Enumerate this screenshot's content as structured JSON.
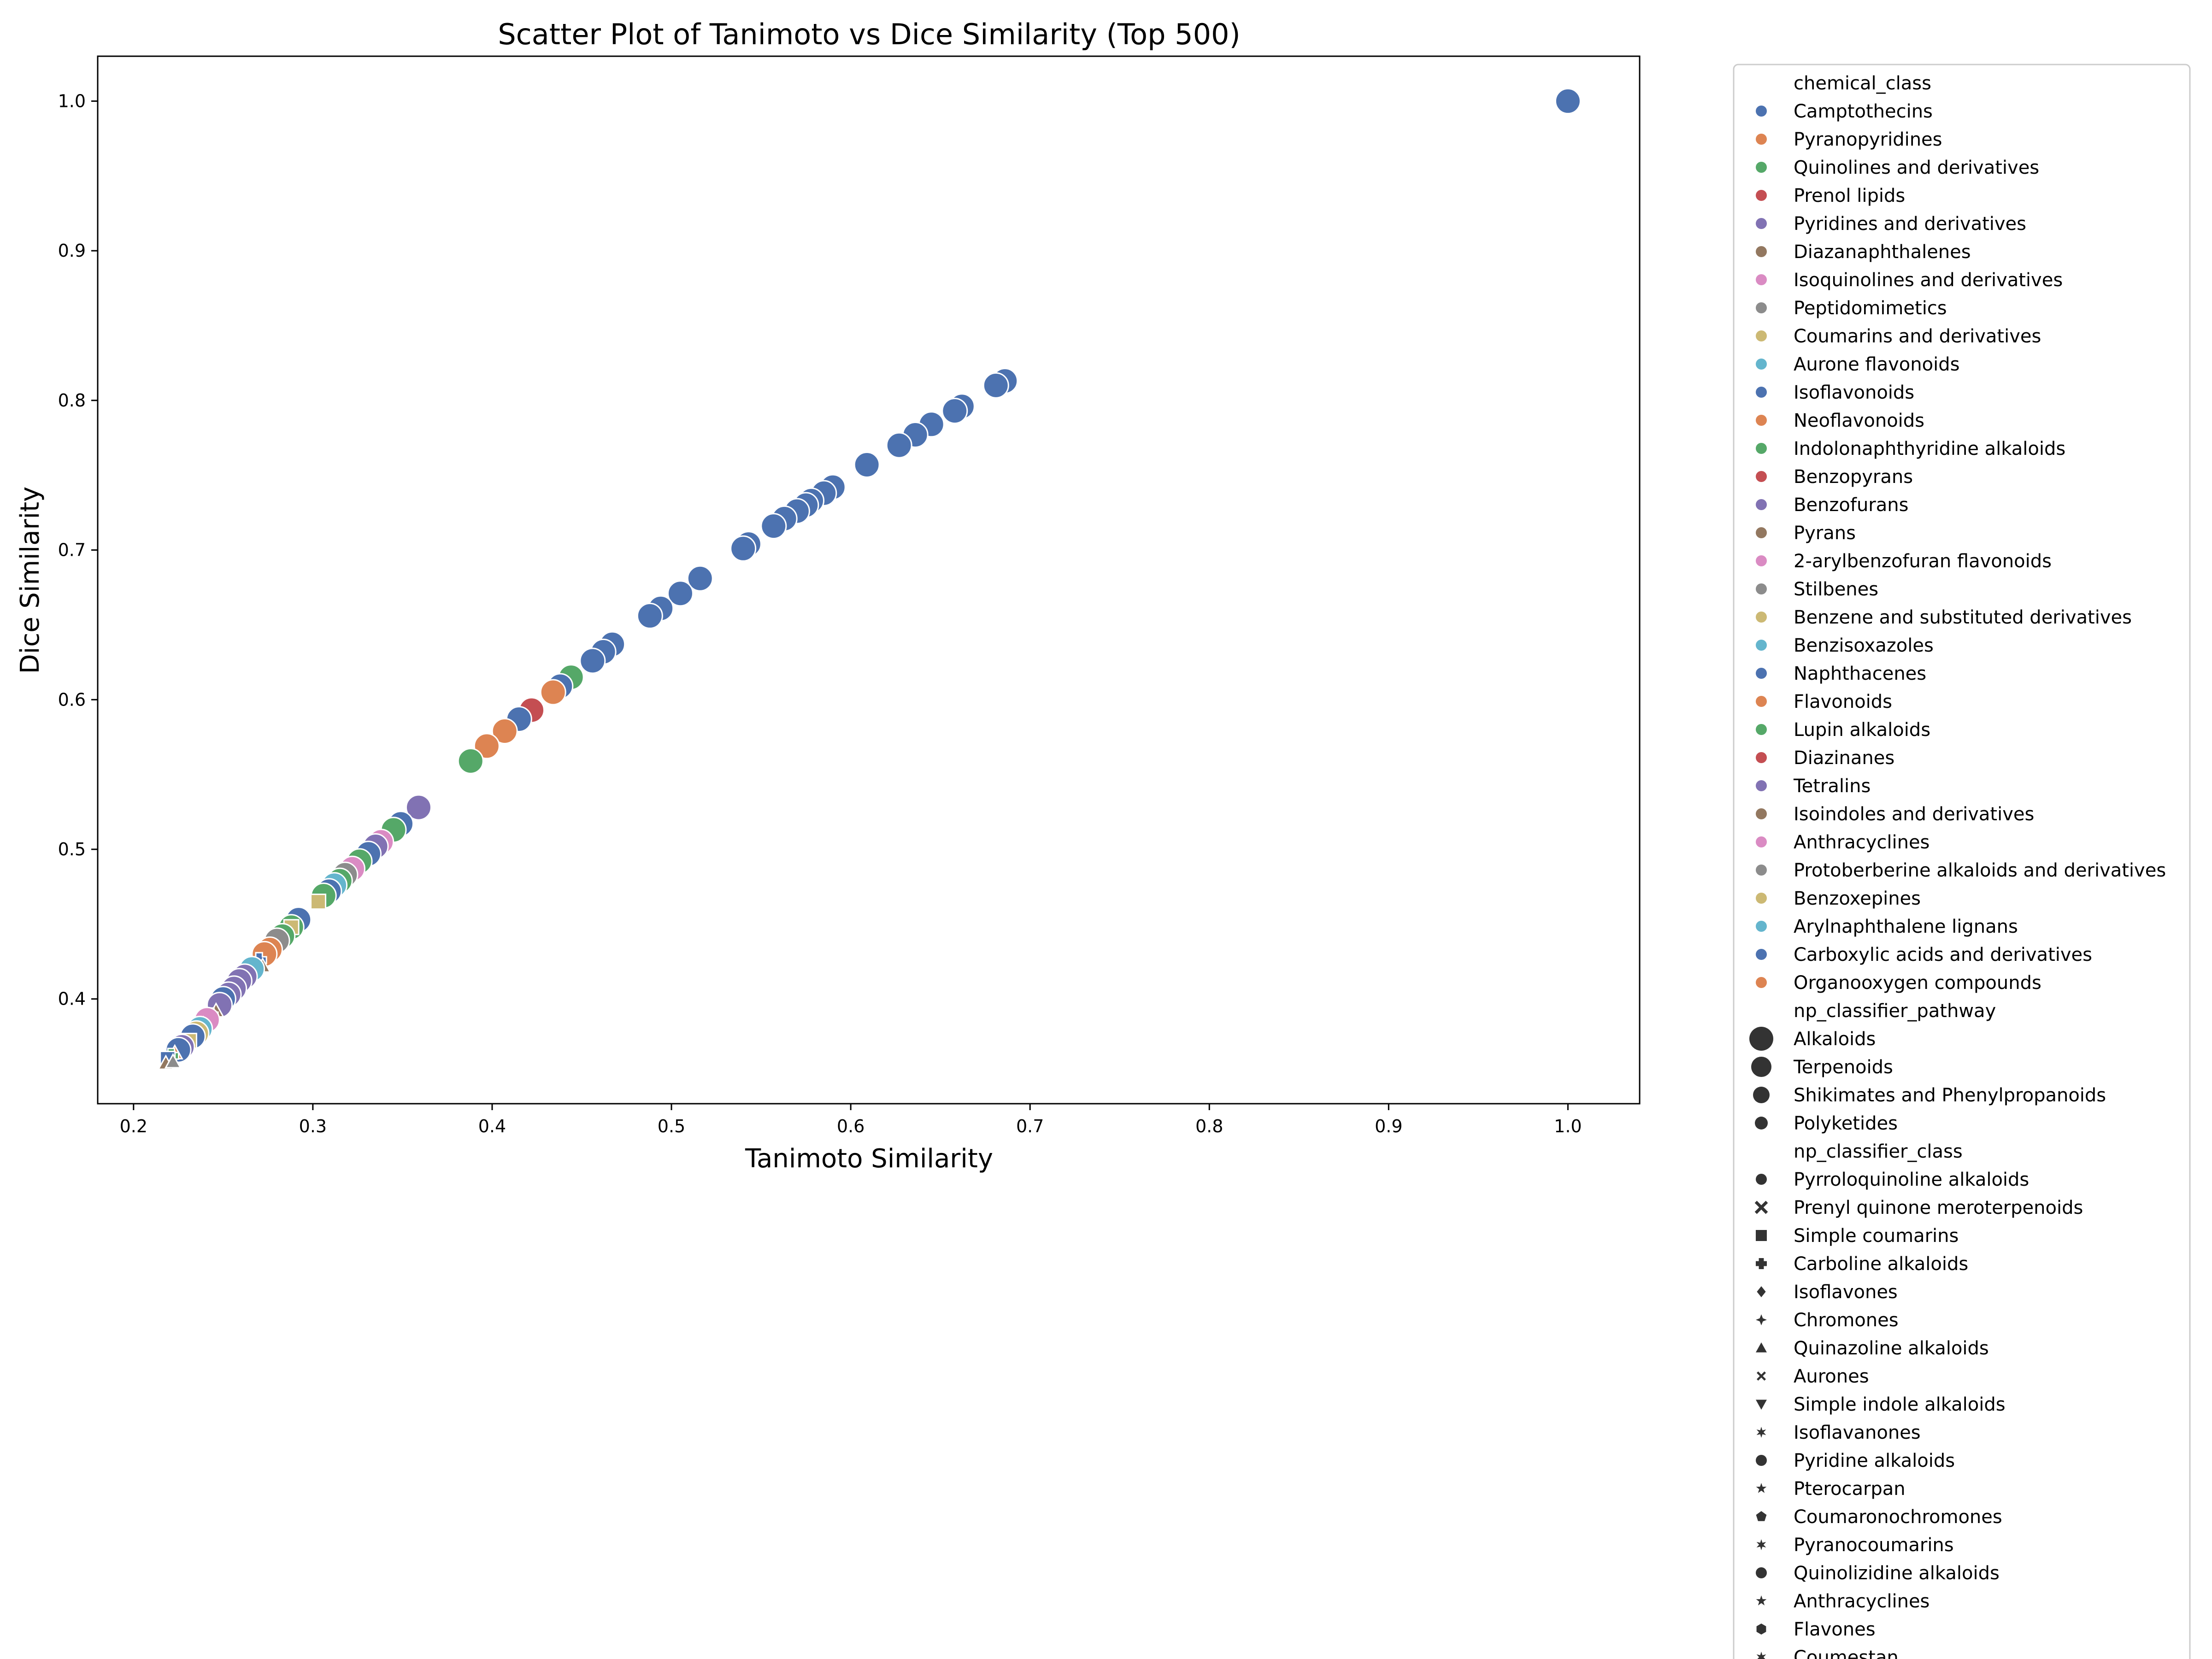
{
  "chart_data": {
    "type": "scatter",
    "title": "Scatter Plot of Tanimoto vs Dice Similarity (Top 500)",
    "xlabel": "Tanimoto Similarity",
    "ylabel": "Dice Similarity",
    "xlim": [
      0.18,
      1.04
    ],
    "ylim": [
      0.33,
      1.03
    ],
    "xticks": [
      "0.2",
      "0.3",
      "0.4",
      "0.5",
      "0.6",
      "0.7",
      "0.8",
      "0.9",
      "1.0"
    ],
    "yticks": [
      "0.4",
      "0.5",
      "0.6",
      "0.7",
      "0.8",
      "0.9",
      "1.0"
    ],
    "grid": false,
    "legend_position": "outside-right",
    "legend": {
      "hue_title": "chemical_class",
      "hue": [
        {
          "name": "Camptothecins",
          "color": "#4c72b0"
        },
        {
          "name": "Pyranopyridines",
          "color": "#dd8452"
        },
        {
          "name": "Quinolines and derivatives",
          "color": "#55a868"
        },
        {
          "name": "Prenol lipids",
          "color": "#c44e52"
        },
        {
          "name": "Pyridines and derivatives",
          "color": "#8172b3"
        },
        {
          "name": "Diazanaphthalenes",
          "color": "#937860"
        },
        {
          "name": "Isoquinolines and derivatives",
          "color": "#da8bc3"
        },
        {
          "name": "Peptidomimetics",
          "color": "#8c8c8c"
        },
        {
          "name": "Coumarins and derivatives",
          "color": "#ccb974"
        },
        {
          "name": "Aurone flavonoids",
          "color": "#64b5cd"
        },
        {
          "name": "Isoflavonoids",
          "color": "#4c72b0"
        },
        {
          "name": "Neoflavonoids",
          "color": "#dd8452"
        },
        {
          "name": "Indolonaphthyridine alkaloids",
          "color": "#55a868"
        },
        {
          "name": "Benzopyrans",
          "color": "#c44e52"
        },
        {
          "name": "Benzofurans",
          "color": "#8172b3"
        },
        {
          "name": "Pyrans",
          "color": "#937860"
        },
        {
          "name": "2-arylbenzofuran flavonoids",
          "color": "#da8bc3"
        },
        {
          "name": "Stilbenes",
          "color": "#8c8c8c"
        },
        {
          "name": "Benzene and substituted derivatives",
          "color": "#ccb974"
        },
        {
          "name": "Benzisoxazoles",
          "color": "#64b5cd"
        },
        {
          "name": "Naphthacenes",
          "color": "#4c72b0"
        },
        {
          "name": "Flavonoids",
          "color": "#dd8452"
        },
        {
          "name": "Lupin alkaloids",
          "color": "#55a868"
        },
        {
          "name": "Diazinanes",
          "color": "#c44e52"
        },
        {
          "name": "Tetralins",
          "color": "#8172b3"
        },
        {
          "name": "Isoindoles and derivatives",
          "color": "#937860"
        },
        {
          "name": "Anthracyclines",
          "color": "#da8bc3"
        },
        {
          "name": "Protoberberine alkaloids and derivatives",
          "color": "#8c8c8c"
        },
        {
          "name": "Benzoxepines",
          "color": "#ccb974"
        },
        {
          "name": "Arylnaphthalene lignans",
          "color": "#64b5cd"
        },
        {
          "name": "Carboxylic acids and derivatives",
          "color": "#4c72b0"
        },
        {
          "name": "Organooxygen compounds",
          "color": "#dd8452"
        }
      ],
      "size_title": "np_classifier_pathway",
      "size": [
        {
          "name": "Alkaloids",
          "r": 26
        },
        {
          "name": "Terpenoids",
          "r": 22
        },
        {
          "name": "Shikimates and Phenylpropanoids",
          "r": 18
        },
        {
          "name": "Polyketides",
          "r": 14
        }
      ],
      "style_title": "np_classifier_class",
      "style": [
        {
          "name": "Pyrroloquinoline alkaloids",
          "marker": "circle"
        },
        {
          "name": "Prenyl quinone meroterpenoids",
          "marker": "x"
        },
        {
          "name": "Simple coumarins",
          "marker": "square"
        },
        {
          "name": "Carboline alkaloids",
          "marker": "plus"
        },
        {
          "name": "Isoflavones",
          "marker": "diamond"
        },
        {
          "name": "Chromones",
          "marker": "star4"
        },
        {
          "name": "Quinazoline alkaloids",
          "marker": "triangle-up"
        },
        {
          "name": "Aurones",
          "marker": "x-small"
        },
        {
          "name": "Simple indole alkaloids",
          "marker": "triangle-down"
        },
        {
          "name": "Isoflavanones",
          "marker": "star6"
        },
        {
          "name": "Pyridine alkaloids",
          "marker": "circle"
        },
        {
          "name": "Pterocarpan",
          "marker": "star5"
        },
        {
          "name": "Coumaronochromones",
          "marker": "pentagon"
        },
        {
          "name": "Pyranocoumarins",
          "marker": "star6"
        },
        {
          "name": "Quinolizidine alkaloids",
          "marker": "circle"
        },
        {
          "name": "Anthracyclines",
          "marker": "star5"
        },
        {
          "name": "Flavones",
          "marker": "hexagon"
        },
        {
          "name": "Coumestan",
          "marker": "star6"
        }
      ]
    },
    "points": [
      {
        "x": 1.0,
        "y": 1.0,
        "c": "#4c72b0"
      },
      {
        "x": 0.686,
        "y": 0.813,
        "c": "#4c72b0"
      },
      {
        "x": 0.681,
        "y": 0.81,
        "c": "#4c72b0"
      },
      {
        "x": 0.662,
        "y": 0.796,
        "c": "#4c72b0"
      },
      {
        "x": 0.658,
        "y": 0.793,
        "c": "#4c72b0"
      },
      {
        "x": 0.645,
        "y": 0.784,
        "c": "#4c72b0"
      },
      {
        "x": 0.636,
        "y": 0.777,
        "c": "#4c72b0"
      },
      {
        "x": 0.627,
        "y": 0.77,
        "c": "#4c72b0"
      },
      {
        "x": 0.609,
        "y": 0.757,
        "c": "#4c72b0"
      },
      {
        "x": 0.59,
        "y": 0.742,
        "c": "#4c72b0"
      },
      {
        "x": 0.585,
        "y": 0.738,
        "c": "#4c72b0"
      },
      {
        "x": 0.578,
        "y": 0.733,
        "c": "#4c72b0"
      },
      {
        "x": 0.575,
        "y": 0.73,
        "c": "#4c72b0"
      },
      {
        "x": 0.57,
        "y": 0.726,
        "c": "#4c72b0"
      },
      {
        "x": 0.563,
        "y": 0.721,
        "c": "#4c72b0"
      },
      {
        "x": 0.557,
        "y": 0.716,
        "c": "#4c72b0"
      },
      {
        "x": 0.543,
        "y": 0.704,
        "c": "#4c72b0"
      },
      {
        "x": 0.54,
        "y": 0.701,
        "c": "#4c72b0"
      },
      {
        "x": 0.516,
        "y": 0.681,
        "c": "#4c72b0"
      },
      {
        "x": 0.505,
        "y": 0.671,
        "c": "#4c72b0"
      },
      {
        "x": 0.494,
        "y": 0.661,
        "c": "#4c72b0"
      },
      {
        "x": 0.488,
        "y": 0.656,
        "c": "#4c72b0"
      },
      {
        "x": 0.467,
        "y": 0.637,
        "c": "#4c72b0"
      },
      {
        "x": 0.462,
        "y": 0.632,
        "c": "#4c72b0"
      },
      {
        "x": 0.456,
        "y": 0.626,
        "c": "#4c72b0"
      },
      {
        "x": 0.444,
        "y": 0.615,
        "c": "#55a868"
      },
      {
        "x": 0.438,
        "y": 0.609,
        "c": "#4c72b0"
      },
      {
        "x": 0.434,
        "y": 0.605,
        "c": "#dd8452"
      },
      {
        "x": 0.422,
        "y": 0.593,
        "c": "#c44e52"
      },
      {
        "x": 0.415,
        "y": 0.587,
        "c": "#4c72b0"
      },
      {
        "x": 0.407,
        "y": 0.579,
        "c": "#dd8452"
      },
      {
        "x": 0.397,
        "y": 0.569,
        "c": "#dd8452"
      },
      {
        "x": 0.388,
        "y": 0.559,
        "c": "#55a868"
      },
      {
        "x": 0.359,
        "y": 0.528,
        "c": "#8172b3"
      },
      {
        "x": 0.349,
        "y": 0.517,
        "c": "#4c72b0"
      },
      {
        "x": 0.345,
        "y": 0.513,
        "c": "#55a868"
      },
      {
        "x": 0.338,
        "y": 0.505,
        "c": "#da8bc3"
      },
      {
        "x": 0.335,
        "y": 0.502,
        "c": "#8172b3"
      },
      {
        "x": 0.331,
        "y": 0.497,
        "c": "#4c72b0"
      },
      {
        "x": 0.326,
        "y": 0.492,
        "c": "#55a868"
      },
      {
        "x": 0.322,
        "y": 0.487,
        "c": "#da8bc3"
      },
      {
        "x": 0.318,
        "y": 0.483,
        "c": "#8c8c8c"
      },
      {
        "x": 0.315,
        "y": 0.479,
        "c": "#55a868"
      },
      {
        "x": 0.312,
        "y": 0.476,
        "c": "#64b5cd"
      },
      {
        "x": 0.309,
        "y": 0.472,
        "c": "#4c72b0"
      },
      {
        "x": 0.306,
        "y": 0.469,
        "c": "#55a868"
      },
      {
        "x": 0.303,
        "y": 0.465,
        "c": "#ccb974",
        "m": "square"
      },
      {
        "x": 0.292,
        "y": 0.453,
        "c": "#4c72b0"
      },
      {
        "x": 0.288,
        "y": 0.448,
        "c": "#55a868"
      },
      {
        "x": 0.288,
        "y": 0.448,
        "c": "#ccb974",
        "m": "square"
      },
      {
        "x": 0.283,
        "y": 0.442,
        "c": "#55a868"
      },
      {
        "x": 0.28,
        "y": 0.439,
        "c": "#8c8c8c"
      },
      {
        "x": 0.276,
        "y": 0.433,
        "c": "#dd8452"
      },
      {
        "x": 0.273,
        "y": 0.43,
        "c": "#dd8452"
      },
      {
        "x": 0.27,
        "y": 0.426,
        "c": "#4c72b0",
        "m": "plus"
      },
      {
        "x": 0.272,
        "y": 0.422,
        "c": "#937860",
        "m": "triangle-up"
      },
      {
        "x": 0.266,
        "y": 0.42,
        "c": "#64b5cd"
      },
      {
        "x": 0.262,
        "y": 0.415,
        "c": "#8172b3"
      },
      {
        "x": 0.259,
        "y": 0.412,
        "c": "#8172b3"
      },
      {
        "x": 0.256,
        "y": 0.407,
        "c": "#8172b3"
      },
      {
        "x": 0.253,
        "y": 0.403,
        "c": "#8172b3"
      },
      {
        "x": 0.25,
        "y": 0.4,
        "c": "#4c72b0"
      },
      {
        "x": 0.248,
        "y": 0.396,
        "c": "#8172b3"
      },
      {
        "x": 0.246,
        "y": 0.392,
        "c": "#937860",
        "m": "triangle-up"
      },
      {
        "x": 0.243,
        "y": 0.389,
        "c": "#4c72b0",
        "m": "plus"
      },
      {
        "x": 0.241,
        "y": 0.386,
        "c": "#da8bc3"
      },
      {
        "x": 0.239,
        "y": 0.383,
        "c": "#8c8c8c",
        "m": "triangle-up"
      },
      {
        "x": 0.237,
        "y": 0.38,
        "c": "#64b5cd"
      },
      {
        "x": 0.235,
        "y": 0.377,
        "c": "#ccb974"
      },
      {
        "x": 0.233,
        "y": 0.375,
        "c": "#4c72b0"
      },
      {
        "x": 0.231,
        "y": 0.372,
        "c": "#ccb974",
        "m": "square"
      },
      {
        "x": 0.229,
        "y": 0.37,
        "c": "#937860",
        "m": "triangle-up"
      },
      {
        "x": 0.227,
        "y": 0.368,
        "c": "#8172b3"
      },
      {
        "x": 0.225,
        "y": 0.366,
        "c": "#4c72b0"
      },
      {
        "x": 0.223,
        "y": 0.364,
        "c": "#dd8452",
        "m": "triangle-up"
      },
      {
        "x": 0.221,
        "y": 0.362,
        "c": "#55a868",
        "m": "plus"
      },
      {
        "x": 0.219,
        "y": 0.36,
        "c": "#4c72b0",
        "m": "square"
      },
      {
        "x": 0.218,
        "y": 0.357,
        "c": "#937860",
        "m": "triangle-up"
      },
      {
        "x": 0.222,
        "y": 0.358,
        "c": "#8c8c8c",
        "m": "triangle-up"
      }
    ]
  }
}
